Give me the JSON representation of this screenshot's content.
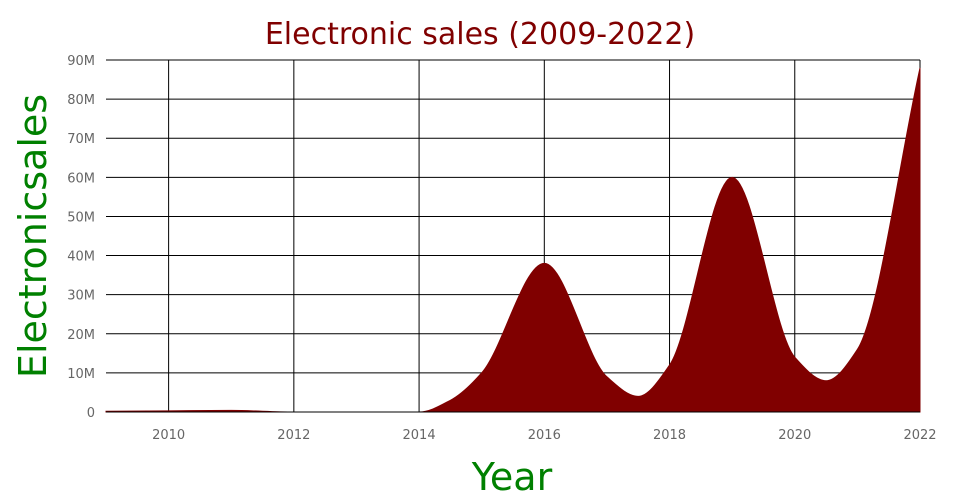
{
  "chart_data": {
    "type": "area",
    "title": "Electronic sales (2009-2022)",
    "xlabel": "Year",
    "ylabel": "Electronicsales",
    "xlim": [
      2009,
      2022
    ],
    "ylim": [
      0,
      90000000
    ],
    "x_ticks": [
      2010,
      2012,
      2014,
      2016,
      2018,
      2020,
      2022
    ],
    "y_ticks": [
      0,
      10000000,
      20000000,
      30000000,
      40000000,
      50000000,
      60000000,
      70000000,
      80000000,
      90000000
    ],
    "y_tick_labels": [
      "0",
      "10M",
      "20M",
      "30M",
      "40M",
      "50M",
      "60M",
      "70M",
      "80M",
      "90M"
    ],
    "grid": true,
    "fill_color": "#800000",
    "title_color": "#800000",
    "axis_title_color": "#008000",
    "series": [
      {
        "x": [
          2009,
          2010,
          2011,
          2012,
          2013,
          2014,
          2014.5,
          2015,
          2016,
          2017,
          2017.5,
          2018,
          2019,
          2020,
          2020.5,
          2021,
          2022
        ],
        "values": [
          200000,
          300000,
          400000,
          0,
          0,
          0,
          3000000,
          10000000,
          38000000,
          9000000,
          4000000,
          12000000,
          60000000,
          14000000,
          8000000,
          16000000,
          88000000
        ]
      }
    ]
  }
}
